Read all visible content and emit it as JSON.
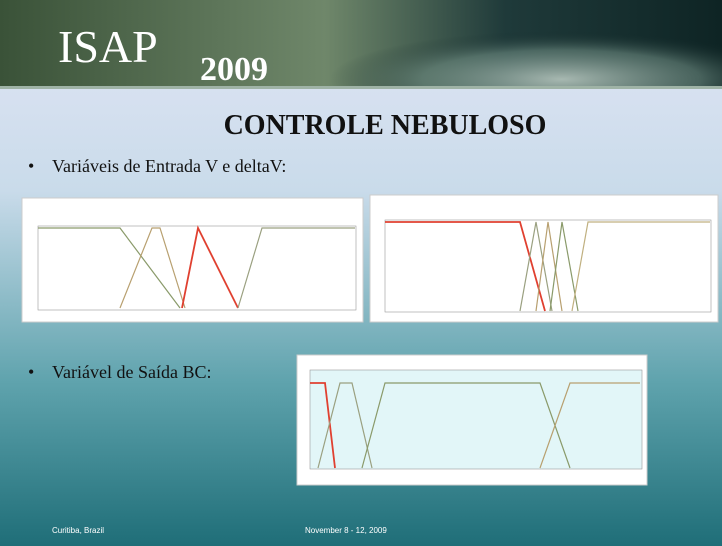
{
  "header": {
    "logo": "ISAP",
    "year": "2009"
  },
  "title": "CONTROLE NEBULOSO",
  "bullets": [
    "Variáveis de Entrada V e deltaV:",
    "Variável de Saída BC:"
  ],
  "footer": {
    "location": "Curitiba, Brazil",
    "dates": "November 8 - 12, 2009"
  }
}
